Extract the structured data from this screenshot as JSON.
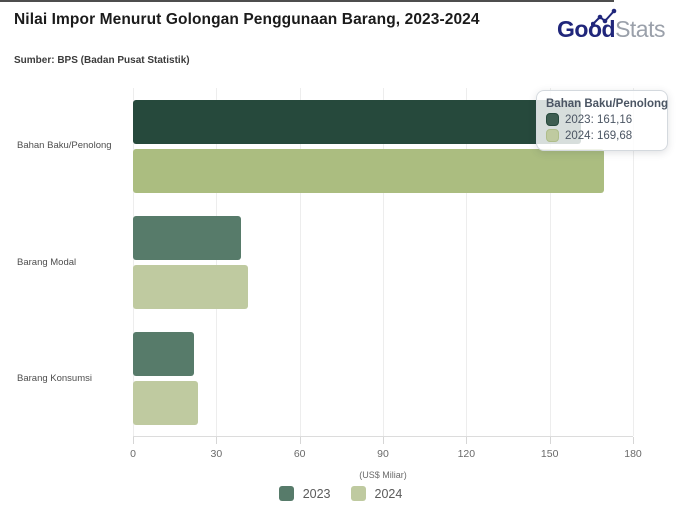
{
  "header": {
    "title": "Nilai Impor Menurut Golongan Penggunaan Barang, 2023-2024",
    "source": "Sumber: BPS (Badan Pusat Statistik)",
    "logo": {
      "bold": "Good",
      "light": "Stats"
    }
  },
  "chart_data": {
    "type": "bar",
    "orientation": "horizontal",
    "title": "Nilai Impor Menurut Golongan Penggunaan Barang, 2023-2024",
    "categories": [
      "Bahan Baku/Penolong",
      "Barang Modal",
      "Barang Konsumsi"
    ],
    "series": [
      {
        "name": "2023",
        "values": [
          161.16,
          39.0,
          22.0
        ],
        "color": "#577b6a",
        "highlight_color": "#26493c"
      },
      {
        "name": "2024",
        "values": [
          169.68,
          41.5,
          23.5
        ],
        "color": "#bfcaa0",
        "highlight_color": "#abbd80"
      }
    ],
    "highlighted_category": "Bahan Baku/Penolong",
    "xlabel": "(US$ Miliar)",
    "xlim": [
      0,
      180
    ],
    "x_ticks": [
      0,
      30,
      60,
      90,
      120,
      150,
      180
    ],
    "grid": true,
    "legend_position": "bottom"
  },
  "tooltip": {
    "title": "Bahan Baku/Penolong",
    "items": [
      {
        "series": "2023",
        "text": "2023: 161,16"
      },
      {
        "series": "2024",
        "text": "2024: 169,68"
      }
    ]
  },
  "colors": {
    "logo_navy": "#20267b",
    "logo_gray": "#9aa0aa",
    "grid_line": "#ededed",
    "axis_line": "#dcdcdc",
    "tooltip_swatch_2023": "#3d5d50",
    "tooltip_swatch_2023_border": "#26493c",
    "tooltip_swatch_2024": "#bfcaa0",
    "tooltip_swatch_2024_border": "#aebd8a"
  }
}
